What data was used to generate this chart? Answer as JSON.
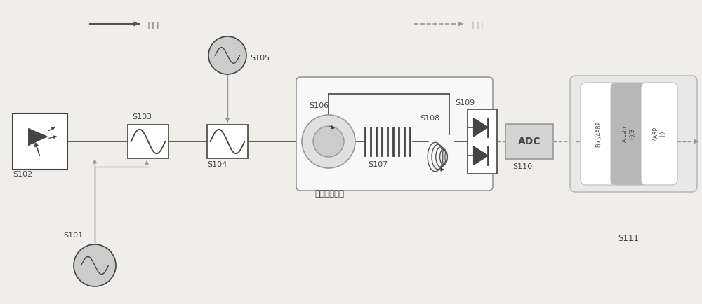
{
  "bg_color": "#f0eeeb",
  "line_color": "#444444",
  "gray_color": "#999999",
  "box_color": "#ffffff",
  "dark_gray": "#888888",
  "light_gray": "#d4d4d4",
  "med_gray": "#bbbbbb",
  "gain_bg": "#f8f8f8",
  "s111_bg": "#e8e8e8",
  "labels": {
    "S101": "S101",
    "S102": "S102",
    "S103": "S103",
    "S104": "S104",
    "S105": "S105",
    "S106": "S106",
    "S107": "S107",
    "S108": "S108",
    "S109": "S109",
    "S110": "S110",
    "S111": "S111",
    "gain_module": "增益提高模块",
    "optical_path": "光路",
    "electrical_path": "电路",
    "ADC": "ADC",
    "fx_4arp": "F(x)/4ARP",
    "arcsin": "Arcsin\n(·)\n/B",
    "4arp_c": "4ARP (·)"
  }
}
